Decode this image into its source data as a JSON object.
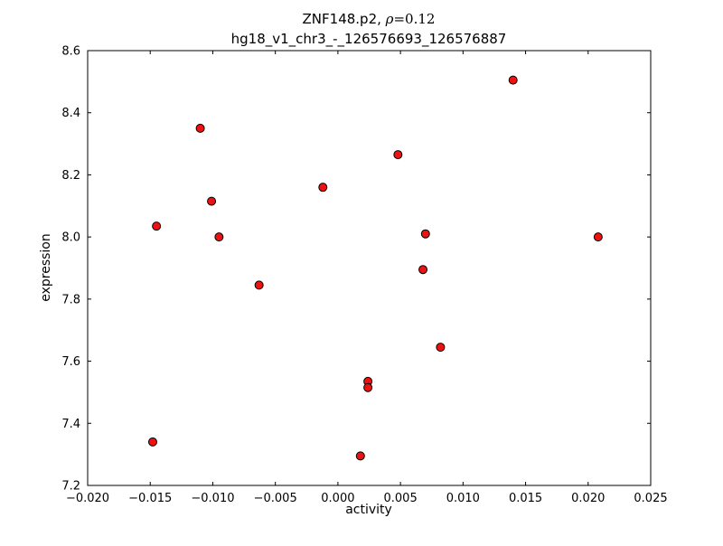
{
  "chart_data": {
    "type": "scatter",
    "title_line1": {
      "prefix": "ZNF148.p2, ",
      "rho": "ρ",
      "suffix": "=0.12"
    },
    "title_line2": "hg18_v1_chr3_-_126576693_126576887",
    "xlabel": "activity",
    "ylabel": "expression",
    "xlim": [
      -0.02,
      0.025
    ],
    "ylim": [
      7.2,
      8.6
    ],
    "xtick_values": [
      -0.02,
      -0.015,
      -0.01,
      -0.005,
      0.0,
      0.005,
      0.01,
      0.015,
      0.02,
      0.025
    ],
    "xtick_labels": [
      "−0.020",
      "−0.015",
      "−0.010",
      "−0.005",
      "0.000",
      "0.005",
      "0.010",
      "0.015",
      "0.020",
      "0.025"
    ],
    "ytick_values": [
      7.2,
      7.4,
      7.6,
      7.8,
      8.0,
      8.2,
      8.4,
      8.6
    ],
    "ytick_labels": [
      "7.2",
      "7.4",
      "7.6",
      "7.8",
      "8.0",
      "8.2",
      "8.4",
      "8.6"
    ],
    "grid": false,
    "legend": null,
    "marker": {
      "shape": "circle",
      "fill": "#ee1111",
      "edge": "#000000",
      "radius": 4.5
    },
    "points": [
      {
        "x": -0.0148,
        "y": 7.34
      },
      {
        "x": -0.0145,
        "y": 8.035
      },
      {
        "x": -0.011,
        "y": 8.35
      },
      {
        "x": -0.0101,
        "y": 8.115
      },
      {
        "x": -0.0095,
        "y": 8.0
      },
      {
        "x": -0.0063,
        "y": 7.845
      },
      {
        "x": -0.0012,
        "y": 8.16
      },
      {
        "x": 0.0018,
        "y": 7.295
      },
      {
        "x": 0.0024,
        "y": 7.535
      },
      {
        "x": 0.0024,
        "y": 7.515
      },
      {
        "x": 0.0048,
        "y": 8.265
      },
      {
        "x": 0.0068,
        "y": 7.895
      },
      {
        "x": 0.007,
        "y": 8.01
      },
      {
        "x": 0.0082,
        "y": 7.645
      },
      {
        "x": 0.014,
        "y": 8.505
      },
      {
        "x": 0.0208,
        "y": 8.0
      }
    ]
  }
}
